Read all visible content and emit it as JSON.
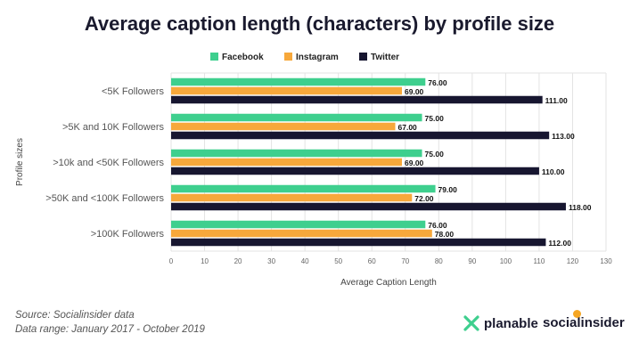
{
  "chart_data": {
    "type": "bar",
    "orientation": "horizontal",
    "title": "Average caption length (characters) by profile size",
    "xlabel": "Average Caption Length",
    "ylabel": "Profile sizes",
    "xlim": [
      0,
      130
    ],
    "xticks": [
      0,
      10,
      20,
      30,
      40,
      50,
      60,
      70,
      80,
      90,
      100,
      110,
      120,
      130
    ],
    "grid": "vertical",
    "legend_position": "top-center",
    "categories": [
      "<5K Followers",
      ">5K and 10K Followers",
      ">10k and <50K Followers",
      ">50K and <100K Followers",
      ">100K Followers"
    ],
    "series": [
      {
        "name": "Facebook",
        "color": "#3ecf8e",
        "values": [
          76,
          75,
          75,
          79,
          76
        ],
        "labels": [
          "76.00",
          "75.00",
          "75.00",
          "79.00",
          "76.00"
        ]
      },
      {
        "name": "Instagram",
        "color": "#f7a83b",
        "values": [
          69,
          67,
          69,
          72,
          78
        ],
        "labels": [
          "69.00",
          "67.00",
          "69.00",
          "72.00",
          "78.00"
        ]
      },
      {
        "name": "Twitter",
        "color": "#171630",
        "values": [
          111,
          113,
          110,
          118,
          112
        ],
        "labels": [
          "111.00",
          "113.00",
          "110.00",
          "118.00",
          "112.00"
        ]
      }
    ]
  },
  "footer": {
    "source": "Source: Socialinsider data",
    "range": "Data range: January 2017 - October 2019"
  },
  "brands": {
    "planable": "planable",
    "socialinsider": "socialinsider"
  },
  "colors": {
    "planable_green": "#3ecf8e",
    "socialinsider_accent": "#f5a623"
  }
}
